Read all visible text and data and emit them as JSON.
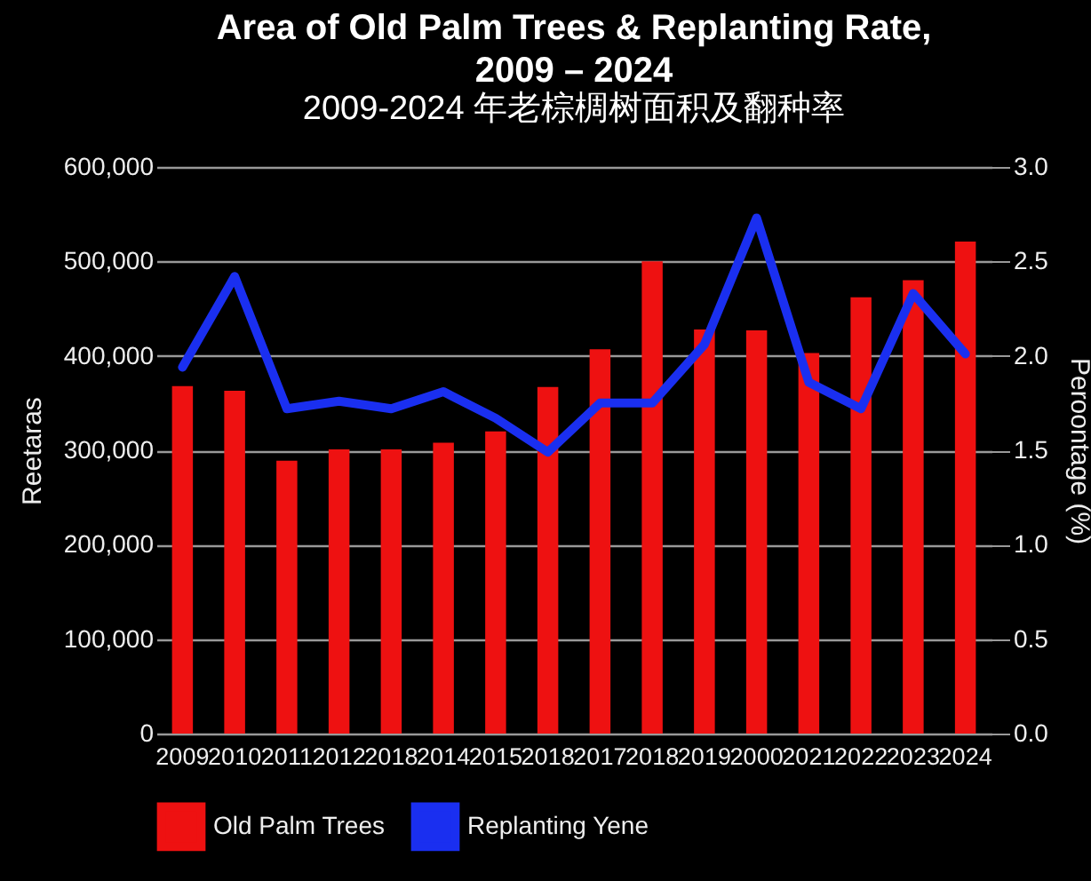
{
  "chart_data": {
    "type": "bar",
    "title": "Area of Old Palm Trees & Replanting Rate, 2009 – 2024",
    "subtitle": "2009-2024 年老棕椆树面积及翻种率",
    "ylabel": "Reetaras",
    "y2label": "Peroontage (%)",
    "categories": [
      "2009",
      "2010",
      "2011",
      "2012",
      "2018",
      "2014",
      "2015",
      "2018",
      "2017",
      "2018",
      "2019",
      "2000",
      "2021",
      "2022",
      "2023",
      "2024"
    ],
    "series": [
      {
        "name": "Old Palm Trees",
        "color": "#ee1111",
        "values": [
          368000,
          363000,
          289000,
          301000,
          301000,
          308000,
          320000,
          367000,
          407000,
          500000,
          428000,
          427000,
          403000,
          462000,
          480000,
          521000
        ]
      },
      {
        "name": "Replanting Yene",
        "type": "line",
        "axis": "y2",
        "color": "#1a2ff0",
        "values": [
          1.94,
          2.42,
          1.72,
          1.76,
          1.72,
          1.81,
          1.67,
          1.49,
          1.75,
          1.75,
          2.06,
          2.73,
          1.86,
          1.72,
          2.33,
          2.01
        ]
      }
    ],
    "ylim": [
      0,
      600000
    ],
    "yticks": [
      0,
      {
        "value": 100000,
        "label": "100,000"
      },
      {
        "value": 200000,
        "label": "200,000"
      },
      {
        "value": 300000,
        "label": "300,000"
      },
      {
        "value": 400000,
        "label": "400,000"
      },
      {
        "value": 500000,
        "label": "500,000"
      },
      {
        "value": 600000,
        "label": "600,000"
      }
    ],
    "y2lim": [
      0,
      3
    ],
    "y2ticks": [
      {
        "value": 0,
        "label": "0.0"
      },
      {
        "value": 0.5,
        "label": "0.5"
      },
      {
        "value": 1,
        "label": "1.0"
      },
      {
        "value": 1.5,
        "label": "1.5"
      },
      {
        "value": 2,
        "label": "2.0"
      },
      {
        "value": 2.5,
        "label": "2.5"
      },
      {
        "value": 3,
        "label": "3.0"
      }
    ],
    "grid": "y",
    "legend": "bottom"
  }
}
